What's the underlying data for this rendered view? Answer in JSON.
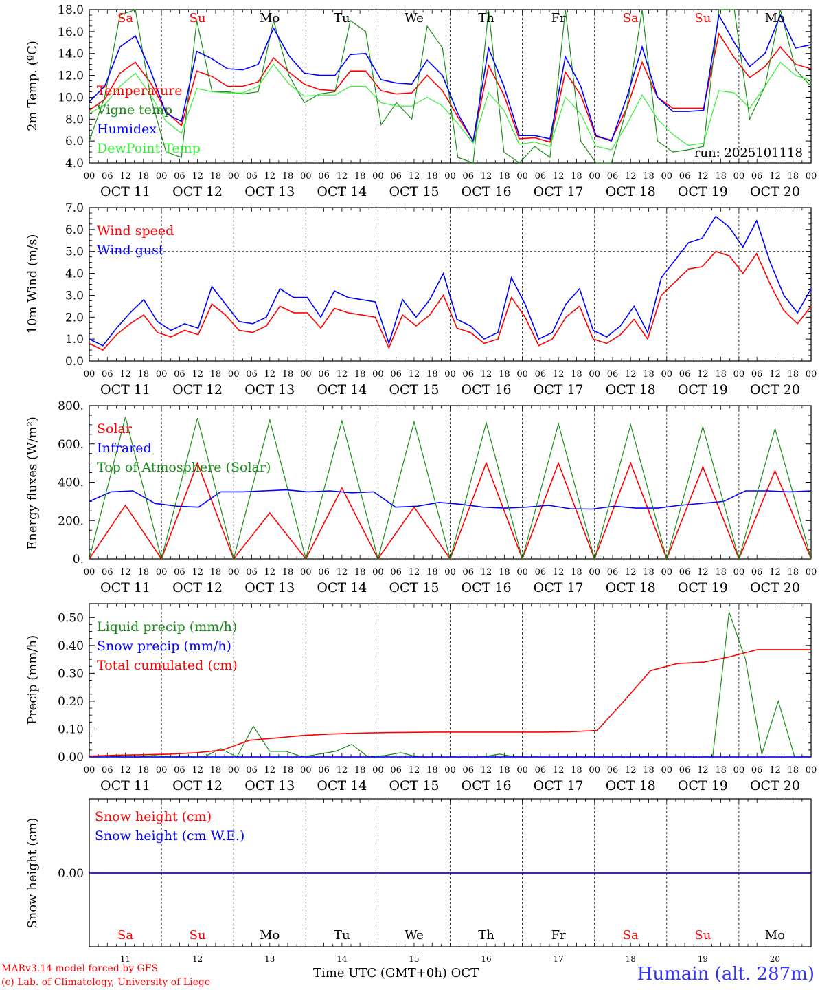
{
  "run_label": "run: 2025101118",
  "credits": {
    "line1": "MARv3.14 model forced by GFS",
    "line2": "(c) Lab. of Climatology, University of Liege"
  },
  "x_axis_title": "Time UTC (GMT+0h) OCT",
  "station": "Humain (alt. 287m)",
  "colors": {
    "red": "#ff0000",
    "green": "#1a8c1a",
    "blue": "#0000ff",
    "lightgreen": "#33ee33",
    "red_day": "#ff0000",
    "black": "#000000"
  },
  "time": {
    "hour_ticks": [
      "00",
      "06",
      "12",
      "18"
    ],
    "final_tick": "00",
    "dates": [
      "OCT 11",
      "OCT 12",
      "OCT 13",
      "OCT 14",
      "OCT 15",
      "OCT 16",
      "OCT 17",
      "OCT 18",
      "OCT 19",
      "OCT 20"
    ],
    "day_numbers": [
      "11",
      "12",
      "13",
      "14",
      "15",
      "16",
      "17",
      "18",
      "19",
      "20"
    ],
    "weekdays": [
      {
        "label": "Sa",
        "weekend": true
      },
      {
        "label": "Su",
        "weekend": true
      },
      {
        "label": "Mo",
        "weekend": false
      },
      {
        "label": "Tu",
        "weekend": false
      },
      {
        "label": "We",
        "weekend": false
      },
      {
        "label": "Th",
        "weekend": false
      },
      {
        "label": "Fr",
        "weekend": false
      },
      {
        "label": "Sa",
        "weekend": true
      },
      {
        "label": "Su",
        "weekend": true
      },
      {
        "label": "Mo",
        "weekend": false
      }
    ]
  },
  "chart_data": [
    {
      "type": "line",
      "ylabel": "2m Temp. (ºC)",
      "ylim": [
        4,
        18
      ],
      "yticks": [
        "4.0",
        "6.0",
        "8.0",
        "10.0",
        "12.0",
        "14.0",
        "16.0",
        "18.0"
      ],
      "yvals": [
        4,
        6,
        8,
        10,
        12,
        14,
        16,
        18
      ],
      "legend": [
        "Temperature",
        "Vigne temp",
        "Humidex",
        "DewPoint Temp"
      ],
      "series": [
        {
          "name": "Temperature",
          "color": "red",
          "values": [
            8.8,
            9.8,
            12.2,
            13.2,
            11.3,
            8.7,
            7.4,
            12.4,
            11.9,
            11.0,
            11.0,
            11.4,
            13.6,
            12.3,
            11.2,
            10.7,
            10.6,
            12.4,
            12.4,
            10.6,
            10.3,
            10.4,
            12.0,
            10.6,
            8.2,
            6.0,
            12.9,
            10.2,
            6.2,
            6.3,
            5.9,
            12.3,
            10.2,
            6.4,
            6.1,
            9.0,
            13.2,
            10.0,
            9.0,
            9.0,
            9.0,
            15.8,
            13.6,
            11.8,
            12.8,
            14.6,
            13.0,
            12.6
          ]
        },
        {
          "name": "Vigne temp",
          "color": "green",
          "values": [
            6.0,
            10.0,
            17.5,
            18.5,
            10.0,
            5.0,
            4.5,
            17.0,
            10.5,
            10.5,
            10.3,
            10.5,
            17.0,
            12.0,
            9.5,
            10.3,
            10.5,
            17.0,
            16.0,
            7.5,
            9.5,
            8.0,
            16.5,
            14.5,
            4.5,
            4.0,
            18.5,
            5.0,
            4.0,
            5.5,
            4.5,
            18.5,
            6.0,
            4.0,
            4.0,
            9.0,
            18.5,
            6.0,
            5.0,
            5.2,
            5.5,
            18.5,
            18.0,
            8.0,
            11.0,
            18.5,
            12.5,
            11.0
          ]
        },
        {
          "name": "Humidex",
          "color": "blue",
          "values": [
            9.6,
            11.0,
            14.6,
            15.6,
            12.4,
            8.5,
            7.8,
            14.2,
            13.5,
            12.6,
            12.5,
            13.0,
            16.3,
            13.8,
            12.2,
            12.0,
            12.0,
            13.9,
            14.0,
            11.6,
            11.3,
            11.2,
            13.4,
            12.0,
            8.5,
            6.0,
            14.5,
            11.0,
            6.5,
            6.5,
            6.2,
            13.7,
            11.0,
            6.5,
            6.0,
            10.0,
            14.6,
            10.0,
            8.7,
            8.7,
            8.8,
            17.5,
            15.0,
            12.8,
            14.0,
            17.5,
            14.5,
            14.8
          ]
        },
        {
          "name": "DewPoint Temp",
          "color": "lightgreen",
          "values": [
            8.5,
            9.3,
            11.0,
            12.2,
            10.2,
            7.8,
            6.7,
            10.8,
            10.5,
            10.4,
            10.4,
            11.0,
            13.0,
            11.2,
            10.1,
            10.2,
            10.2,
            11.0,
            11.0,
            9.5,
            9.2,
            9.2,
            10.0,
            9.2,
            7.6,
            5.8,
            10.4,
            8.8,
            5.7,
            5.9,
            5.5,
            10.0,
            8.5,
            5.5,
            5.2,
            7.5,
            10.2,
            8.0,
            6.6,
            5.6,
            5.8,
            10.6,
            10.4,
            9.0,
            11.0,
            13.2,
            12.0,
            11.5
          ]
        }
      ]
    },
    {
      "type": "line",
      "ylabel": "10m Wind (m/s)",
      "ylim": [
        0,
        7
      ],
      "yticks": [
        "0.0",
        "1.0",
        "2.0",
        "3.0",
        "4.0",
        "5.0",
        "6.0",
        "7.0"
      ],
      "yvals": [
        0,
        1,
        2,
        3,
        4,
        5,
        6,
        7
      ],
      "ref_line": 5,
      "legend": [
        "Wind speed",
        "Wind gust"
      ],
      "series": [
        {
          "name": "Wind speed",
          "color": "red",
          "values": [
            0.8,
            0.5,
            1.2,
            1.7,
            2.1,
            1.3,
            1.1,
            1.4,
            1.2,
            2.6,
            2.1,
            1.4,
            1.3,
            1.6,
            2.5,
            2.2,
            2.2,
            1.5,
            2.4,
            2.2,
            2.1,
            2.0,
            0.6,
            2.1,
            1.6,
            2.1,
            3.0,
            1.5,
            1.3,
            0.8,
            1.0,
            2.9,
            2.0,
            0.7,
            1.0,
            2.0,
            2.5,
            1.0,
            0.8,
            1.2,
            1.9,
            1.0,
            3.0,
            3.6,
            4.2,
            4.3,
            5.0,
            4.8,
            4.0,
            4.9,
            3.5,
            2.3,
            1.7,
            2.5
          ]
        },
        {
          "name": "Wind gust",
          "color": "blue",
          "values": [
            1.0,
            0.7,
            1.5,
            2.2,
            2.8,
            1.8,
            1.4,
            1.7,
            1.5,
            3.4,
            2.6,
            1.8,
            1.7,
            2.0,
            3.3,
            2.9,
            2.9,
            2.0,
            3.2,
            2.9,
            2.8,
            2.7,
            0.8,
            2.8,
            2.0,
            2.8,
            4.0,
            1.9,
            1.6,
            1.0,
            1.3,
            3.8,
            2.6,
            1.0,
            1.3,
            2.6,
            3.3,
            1.4,
            1.1,
            1.6,
            2.5,
            1.3,
            3.8,
            4.6,
            5.4,
            5.6,
            6.6,
            6.1,
            5.2,
            6.4,
            4.5,
            3.0,
            2.2,
            3.3
          ]
        }
      ]
    },
    {
      "type": "line",
      "ylabel": "Energy fluxes (W/m²)",
      "ylim": [
        0,
        800
      ],
      "yticks": [
        "0.",
        "200.",
        "400.",
        "600.",
        "800."
      ],
      "yvals": [
        0,
        200,
        400,
        600,
        800
      ],
      "legend": [
        "Solar",
        "Infrared",
        "Top of Atmosphere (Solar)"
      ],
      "series": [
        {
          "name": "Solar",
          "color": "red",
          "values": [
            0,
            280,
            0,
            500,
            0,
            240,
            0,
            370,
            0,
            270,
            0,
            500,
            0,
            500,
            0,
            500,
            0,
            480,
            0,
            460,
            0
          ]
        },
        {
          "name": "Infrared",
          "color": "blue",
          "values": [
            300,
            350,
            355,
            290,
            275,
            270,
            350,
            350,
            355,
            360,
            350,
            355,
            345,
            350,
            270,
            275,
            295,
            285,
            270,
            265,
            270,
            280,
            262,
            260,
            275,
            265,
            265,
            280,
            290,
            300,
            355,
            355,
            350,
            355
          ]
        },
        {
          "name": "Top of Atmosphere (Solar)",
          "color": "green",
          "values": [
            0,
            740,
            0,
            735,
            0,
            725,
            0,
            720,
            0,
            715,
            0,
            710,
            0,
            705,
            0,
            700,
            0,
            690,
            0,
            680,
            0
          ]
        }
      ]
    },
    {
      "type": "line",
      "ylabel": "Precip (mm/h)",
      "ylim": [
        0,
        0.55
      ],
      "yticks": [
        "0.00",
        "0.10",
        "0.20",
        "0.30",
        "0.40",
        "0.50"
      ],
      "yvals": [
        0,
        0.1,
        0.2,
        0.3,
        0.4,
        0.5
      ],
      "legend": [
        "Liquid precip (mm/h)",
        "Snow precip (mm/h)",
        "Total cumulated (cm)"
      ],
      "series": [
        {
          "name": "Liquid precip (mm/h)",
          "color": "green",
          "values": [
            0,
            0.005,
            0,
            0,
            0.005,
            0,
            0,
            0,
            0.03,
            0,
            0.11,
            0.02,
            0.02,
            0,
            0.01,
            0.02,
            0.045,
            0,
            0.005,
            0.015,
            0,
            0,
            0,
            0,
            0,
            0.01,
            0,
            0,
            0,
            0,
            0,
            0,
            0,
            0,
            0,
            0,
            0,
            0,
            0,
            0.52,
            0.35,
            0.01,
            0.2,
            0,
            0
          ]
        },
        {
          "name": "Snow precip (mm/h)",
          "color": "blue",
          "values": [
            0,
            0
          ]
        },
        {
          "name": "Total cumulated (cm)",
          "color": "red",
          "values": [
            0.003,
            0.006,
            0.008,
            0.01,
            0.015,
            0.025,
            0.06,
            0.068,
            0.077,
            0.082,
            0.085,
            0.087,
            0.088,
            0.089,
            0.089,
            0.089,
            0.089,
            0.089,
            0.09,
            0.095,
            0.2,
            0.31,
            0.335,
            0.34,
            0.36,
            0.385,
            0.385,
            0.385
          ]
        }
      ]
    },
    {
      "type": "line",
      "ylabel": "Snow height (cm)",
      "yticks": [
        "0.00"
      ],
      "legend": [
        "Snow height (cm)",
        "Snow height (cm W.E.)"
      ],
      "series": [
        {
          "name": "Snow height (cm)",
          "color": "red",
          "values": [
            0,
            0
          ]
        },
        {
          "name": "Snow height (cm W.E.)",
          "color": "blue",
          "values": [
            0,
            0
          ]
        }
      ]
    }
  ]
}
